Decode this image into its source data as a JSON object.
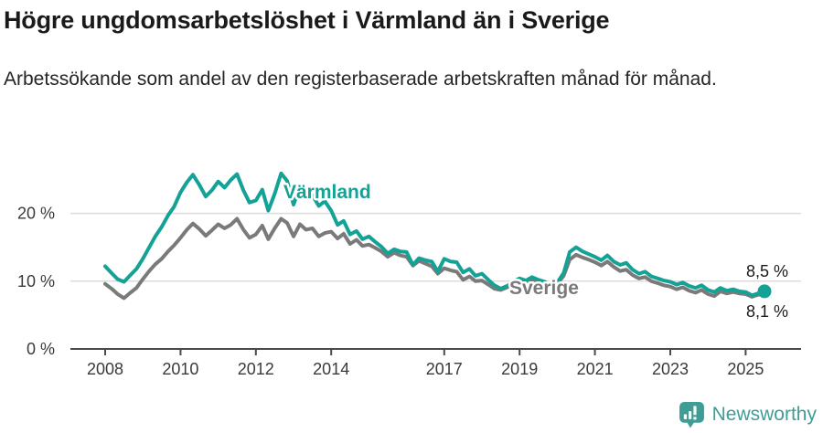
{
  "header": {
    "title": "Högre ungdomsarbetslöshet i Värmland än i Sverige",
    "subtitle": "Arbetssökande som andel av den registerbaserade arbetskraften månad för månad."
  },
  "chart_data": {
    "type": "line",
    "y_unit": "%",
    "grid": "horizontal",
    "legend": "inline-labels",
    "ylim": [
      0,
      27.5
    ],
    "xlim": [
      2007.1,
      2026.4
    ],
    "x_ticks": [
      {
        "value": 2008,
        "label": "2008"
      },
      {
        "value": 2010,
        "label": "2010"
      },
      {
        "value": 2012,
        "label": "2012"
      },
      {
        "value": 2014,
        "label": "2014"
      },
      {
        "value": 2017,
        "label": "2017"
      },
      {
        "value": 2019,
        "label": "2019"
      },
      {
        "value": 2021,
        "label": "2021"
      },
      {
        "value": 2023,
        "label": "2023"
      },
      {
        "value": 2025,
        "label": "2025"
      }
    ],
    "y_ticks": [
      {
        "value": 0,
        "label": "0 %"
      },
      {
        "value": 10,
        "label": "10 %"
      },
      {
        "value": 20,
        "label": "20 %"
      }
    ],
    "x": [
      2008,
      2008.17,
      2008.33,
      2008.5,
      2008.67,
      2008.83,
      2009,
      2009.17,
      2009.33,
      2009.5,
      2009.67,
      2009.83,
      2010,
      2010.17,
      2010.33,
      2010.5,
      2010.67,
      2010.83,
      2011,
      2011.17,
      2011.33,
      2011.5,
      2011.67,
      2011.83,
      2012,
      2012.17,
      2012.33,
      2012.5,
      2012.67,
      2012.83,
      2013,
      2013.17,
      2013.33,
      2013.5,
      2013.67,
      2013.83,
      2014,
      2014.17,
      2014.33,
      2014.5,
      2014.67,
      2014.83,
      2015,
      2015.17,
      2015.33,
      2015.5,
      2015.67,
      2015.83,
      2016,
      2016.17,
      2016.33,
      2016.5,
      2016.67,
      2016.83,
      2017,
      2017.17,
      2017.33,
      2017.5,
      2017.67,
      2017.83,
      2018,
      2018.17,
      2018.33,
      2018.5,
      2018.67,
      2018.83,
      2019,
      2019.17,
      2019.33,
      2019.5,
      2019.67,
      2019.83,
      2020,
      2020.17,
      2020.33,
      2020.5,
      2020.67,
      2020.83,
      2021,
      2021.17,
      2021.33,
      2021.5,
      2021.67,
      2021.83,
      2022,
      2022.17,
      2022.33,
      2022.5,
      2022.67,
      2022.83,
      2023,
      2023.17,
      2023.33,
      2023.5,
      2023.67,
      2023.83,
      2024,
      2024.17,
      2024.33,
      2024.5,
      2024.67,
      2024.83,
      2025,
      2025.17,
      2025.33,
      2025.5
    ],
    "series": [
      {
        "name": "Värmland",
        "color": "#13a295",
        "end_value": 8.5,
        "end_label": "8,5 %",
        "values": [
          12.2,
          11.2,
          10.3,
          9.9,
          10.9,
          11.8,
          13.3,
          15.0,
          16.6,
          18.0,
          19.7,
          21.0,
          23.1,
          24.6,
          25.7,
          24.2,
          22.5,
          23.4,
          24.7,
          23.8,
          24.9,
          25.8,
          23.4,
          21.6,
          21.9,
          23.5,
          20.4,
          22.9,
          25.9,
          24.8,
          21.3,
          23.9,
          22.4,
          22.7,
          21.1,
          21.8,
          20.4,
          18.3,
          18.9,
          16.9,
          17.4,
          16.2,
          16.6,
          15.8,
          15.1,
          14.1,
          14.7,
          14.4,
          14.3,
          12.4,
          13.4,
          13.1,
          12.9,
          11.4,
          13.3,
          12.9,
          12.8,
          11.3,
          11.8,
          10.8,
          11.1,
          10.2,
          9.4,
          8.9,
          9.3,
          9.9,
          10.4,
          10.1,
          10.6,
          10.2,
          9.9,
          9.4,
          9.8,
          11.2,
          14.3,
          15.0,
          14.4,
          14.0,
          13.6,
          13.1,
          13.8,
          12.9,
          12.4,
          12.7,
          11.7,
          11.1,
          11.4,
          10.7,
          10.4,
          10.1,
          9.9,
          9.5,
          9.8,
          9.3,
          9.0,
          9.4,
          8.7,
          8.4,
          9.0,
          8.6,
          8.8,
          8.5,
          8.4,
          7.9,
          8.2,
          8.5
        ]
      },
      {
        "name": "Sverige",
        "color": "#7a7a7a",
        "end_value": 8.1,
        "end_label": "8,1 %",
        "values": [
          9.6,
          8.9,
          8.1,
          7.5,
          8.3,
          9.0,
          10.3,
          11.5,
          12.5,
          13.3,
          14.4,
          15.3,
          16.4,
          17.6,
          18.5,
          17.7,
          16.7,
          17.5,
          18.4,
          17.8,
          18.3,
          19.2,
          17.6,
          16.4,
          16.9,
          18.2,
          16.2,
          17.8,
          19.2,
          18.6,
          16.6,
          18.4,
          17.6,
          17.8,
          16.6,
          17.1,
          17.3,
          16.3,
          17.0,
          15.5,
          16.1,
          15.2,
          15.4,
          14.9,
          14.4,
          13.6,
          14.2,
          13.8,
          13.6,
          12.3,
          13.0,
          12.6,
          12.2,
          11.1,
          11.9,
          11.6,
          11.4,
          10.2,
          10.7,
          10.0,
          10.1,
          9.5,
          8.9,
          8.7,
          9.1,
          9.7,
          10.1,
          9.9,
          10.3,
          9.9,
          9.6,
          9.2,
          9.6,
          10.8,
          13.2,
          13.9,
          13.5,
          13.2,
          12.8,
          12.3,
          12.9,
          12.1,
          11.5,
          11.7,
          10.9,
          10.4,
          10.6,
          10.0,
          9.7,
          9.4,
          9.2,
          8.8,
          9.1,
          8.6,
          8.3,
          8.7,
          8.1,
          7.8,
          8.5,
          8.2,
          8.4,
          8.2,
          8.1,
          7.7,
          8.0,
          8.1
        ]
      }
    ]
  },
  "footer": {
    "brand": "Newsworthy",
    "icon": "newsworthy-speech-bubble-bars-icon"
  },
  "colors": {
    "varmland": "#13a295",
    "sverige": "#7a7a7a",
    "grid": "#dcdcdc",
    "axis": "#4a4a4a",
    "tick_text": "#3a3a3a",
    "annotation_text": "#1a1a1a",
    "brand": "#3f9d95"
  }
}
